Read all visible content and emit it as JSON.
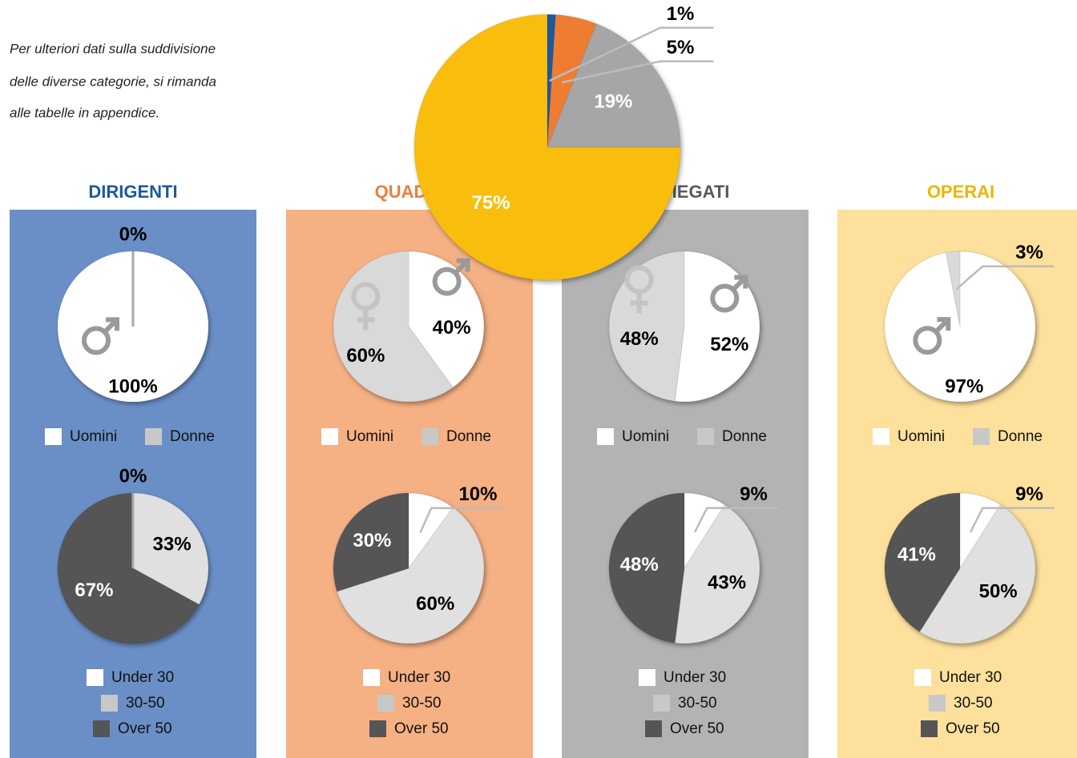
{
  "note": [
    "Per ulteriori dati sulla suddivisione",
    "delle diverse categorie, si rimanda",
    "alle tabelle in appendice."
  ],
  "chart_data": [
    {
      "type": "pie",
      "categories": [
        "DIRIGENTI",
        "QUADRI",
        "IMPIEGATI",
        "OPERAI"
      ],
      "values": [
        1,
        5,
        19,
        75
      ],
      "value_labels": [
        "1%",
        "5%",
        "19%",
        "75%"
      ],
      "colors": [
        "#1f5aa0",
        "#ee7d32",
        "#a6a6a6",
        "#f9be0e"
      ]
    },
    {
      "type": "pie",
      "categories": [
        "Uomini",
        "Donne"
      ],
      "values": [
        100,
        0
      ],
      "value_labels": [
        "100%",
        "0%"
      ],
      "colors": [
        "#ffffff",
        "#d9d9d9"
      ]
    },
    {
      "type": "pie",
      "categories": [
        "Under 30",
        "30-50",
        "Over 50"
      ],
      "values": [
        0,
        33,
        67
      ],
      "value_labels": [
        "0%",
        "33%",
        "67%"
      ],
      "colors": [
        "#ffffff",
        "#e0e0e0",
        "#555555"
      ]
    },
    {
      "type": "pie",
      "categories": [
        "Uomini",
        "Donne"
      ],
      "values": [
        40,
        60
      ],
      "value_labels": [
        "40%",
        "60%"
      ],
      "colors": [
        "#ffffff",
        "#d9d9d9"
      ]
    },
    {
      "type": "pie",
      "categories": [
        "Under 30",
        "30-50",
        "Over 50"
      ],
      "values": [
        10,
        60,
        30
      ],
      "value_labels": [
        "10%",
        "60%",
        "30%"
      ],
      "colors": [
        "#ffffff",
        "#e0e0e0",
        "#555555"
      ]
    },
    {
      "type": "pie",
      "categories": [
        "Uomini",
        "Donne"
      ],
      "values": [
        52,
        48
      ],
      "value_labels": [
        "52%",
        "48%"
      ],
      "colors": [
        "#ffffff",
        "#d9d9d9"
      ]
    },
    {
      "type": "pie",
      "categories": [
        "Under 30",
        "30-50",
        "Over 50"
      ],
      "values": [
        9,
        43,
        48
      ],
      "value_labels": [
        "9%",
        "43%",
        "48%"
      ],
      "colors": [
        "#ffffff",
        "#e0e0e0",
        "#555555"
      ]
    },
    {
      "type": "pie",
      "categories": [
        "Uomini",
        "Donne"
      ],
      "values": [
        97,
        3
      ],
      "value_labels": [
        "97%",
        "3%"
      ],
      "colors": [
        "#ffffff",
        "#d9d9d9"
      ]
    },
    {
      "type": "pie",
      "categories": [
        "Under 30",
        "30-50",
        "Over 50"
      ],
      "values": [
        9,
        50,
        41
      ],
      "value_labels": [
        "9%",
        "50%",
        "41%"
      ],
      "colors": [
        "#ffffff",
        "#e0e0e0",
        "#555555"
      ]
    }
  ]
}
